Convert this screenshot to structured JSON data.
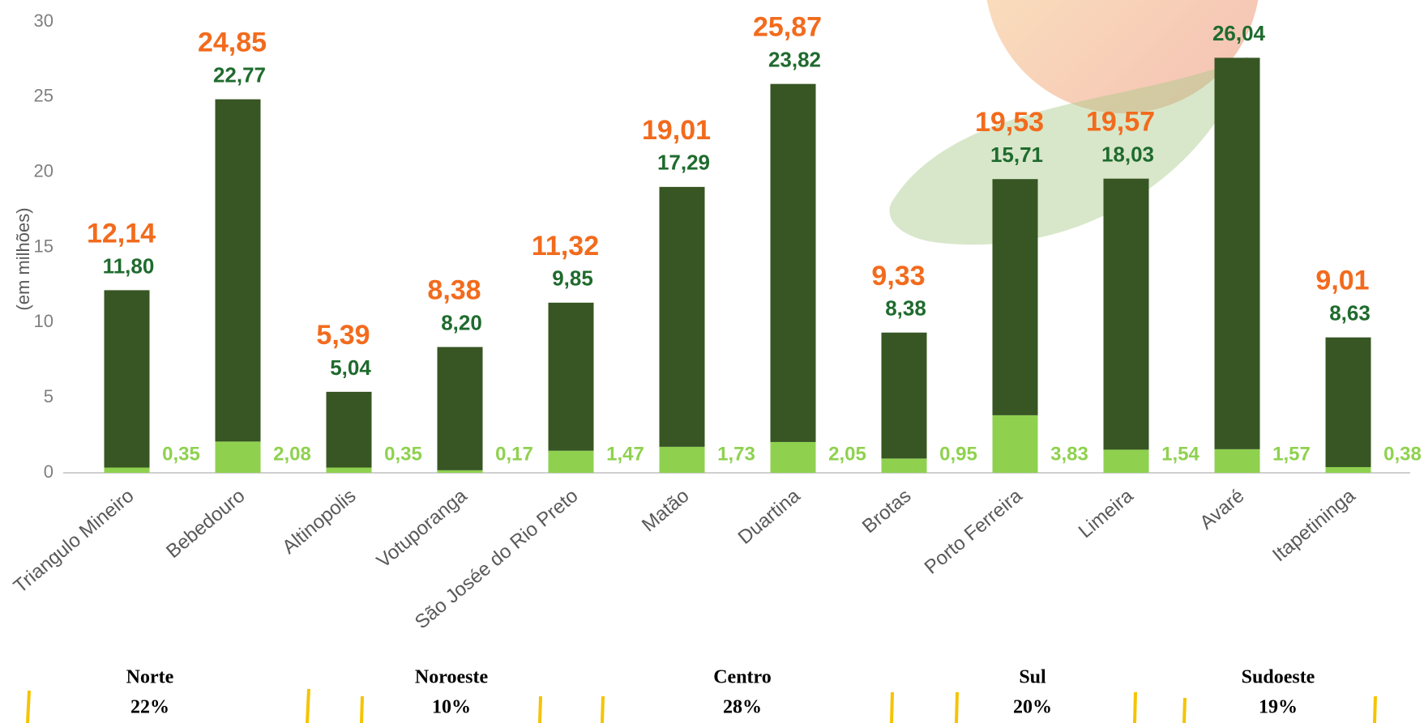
{
  "chart_data": {
    "type": "stacked_bar",
    "ylabel": "(em milhões)",
    "categories": [
      "Triangulo Mineiro",
      "Bebedouro",
      "Altinopolis",
      "Votuporanga",
      "São Josée do Rio Preto",
      "Matão",
      "Duartina",
      "Brotas",
      "Porto Ferreira",
      "Limeira",
      "Avaré",
      "Itapetininga"
    ],
    "series": [
      {
        "color": "#8fd14f",
        "label_color": "#8fd14f",
        "values": [
          0.35,
          2.08,
          0.35,
          0.17,
          1.47,
          1.73,
          2.05,
          0.95,
          3.83,
          1.54,
          1.57,
          0.38
        ],
        "value_labels": [
          "0,35",
          "2,08",
          "0,35",
          "0,17",
          "1,47",
          "1,73",
          "2,05",
          "0,95",
          "3,83",
          "1,54",
          "1,57",
          "0,38"
        ]
      },
      {
        "color": "#375623",
        "label_color": "#1f6b2e",
        "values": [
          11.8,
          22.77,
          5.04,
          8.2,
          9.85,
          17.29,
          23.82,
          8.38,
          15.71,
          18.03,
          26.04,
          8.63
        ],
        "value_labels": [
          "11,80",
          "22,77",
          "5,04",
          "8,20",
          "9,85",
          "17,29",
          "23,82",
          "8,38",
          "15,71",
          "18,03",
          "26,04",
          "8,63"
        ]
      }
    ],
    "totals": {
      "color": "#f26b1d",
      "values": [
        12.14,
        24.85,
        5.39,
        8.38,
        11.32,
        19.01,
        25.87,
        9.33,
        19.53,
        19.57,
        null,
        9.01
      ],
      "value_labels": [
        "12,14",
        "24,85",
        "5,39",
        "8,38",
        "11,32",
        "19,01",
        "25,87",
        "9,33",
        "19,53",
        "19,57",
        null,
        "9,01"
      ]
    },
    "ylim": [
      0,
      30
    ],
    "yticks": [
      0,
      5,
      10,
      15,
      20,
      25,
      30
    ],
    "grid": false,
    "regions": [
      {
        "name": "Norte",
        "share": "22%"
      },
      {
        "name": "Noroeste",
        "share": "10%"
      },
      {
        "name": "Centro",
        "share": "28%"
      },
      {
        "name": "Sul",
        "share": "20%"
      },
      {
        "name": "Sudoeste",
        "share": "19%"
      }
    ]
  }
}
